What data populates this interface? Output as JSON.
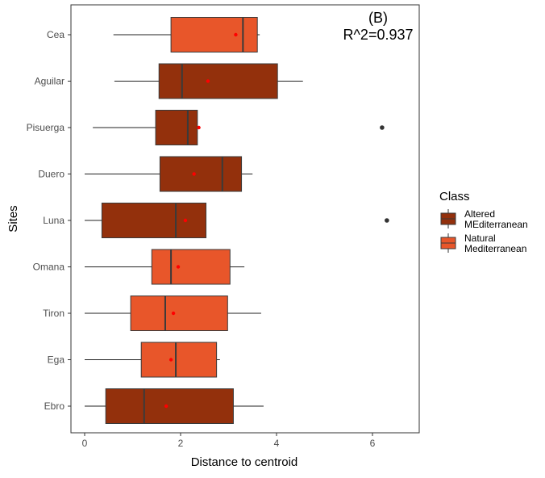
{
  "chart_data": {
    "type": "boxplot",
    "orientation": "horizontal",
    "annotation": {
      "line1": "(B)",
      "line2": "R^2=0.937"
    },
    "xlabel": "Distance to centroid",
    "ylabel": "Sites",
    "xlim": [
      -0.3,
      7.0
    ],
    "xticks": [
      0,
      2,
      4,
      6
    ],
    "xtick_labels": [
      "0",
      "2",
      "4",
      "6"
    ],
    "categories": [
      "Cea",
      "Aguilar",
      "Pisuerga",
      "Duero",
      "Luna",
      "Omana",
      "Tiron",
      "Ega",
      "Ebro"
    ],
    "legend": {
      "title": "Class",
      "position": "right",
      "entries": [
        {
          "key": "altered",
          "line1": "Altered",
          "line2": "MEditerranean",
          "color": "#93300c"
        },
        {
          "key": "natural",
          "line1": "Natural",
          "line2": "Mediterranean",
          "color": "#e8562a"
        }
      ]
    },
    "mean_marker_color": "#ff0000",
    "boxes": [
      {
        "site": "Cea",
        "class": "natural",
        "whisker_low": 0.6,
        "q1": 1.8,
        "median": 3.3,
        "q3": 3.6,
        "whisker_high": 3.65,
        "mean": 3.15,
        "outliers": []
      },
      {
        "site": "Aguilar",
        "class": "altered",
        "whisker_low": 0.62,
        "q1": 1.55,
        "median": 2.03,
        "q3": 4.02,
        "whisker_high": 4.55,
        "mean": 2.57,
        "outliers": []
      },
      {
        "site": "Pisuerga",
        "class": "altered",
        "whisker_low": 0.17,
        "q1": 1.48,
        "median": 2.15,
        "q3": 2.35,
        "whisker_high": 2.35,
        "mean": 2.38,
        "outliers": [
          6.2
        ]
      },
      {
        "site": "Duero",
        "class": "altered",
        "whisker_low": 0.0,
        "q1": 1.57,
        "median": 2.87,
        "q3": 3.27,
        "whisker_high": 3.5,
        "mean": 2.28,
        "outliers": []
      },
      {
        "site": "Luna",
        "class": "altered",
        "whisker_low": 0.0,
        "q1": 0.36,
        "median": 1.9,
        "q3": 2.53,
        "whisker_high": 2.53,
        "mean": 2.1,
        "outliers": [
          6.3
        ]
      },
      {
        "site": "Omana",
        "class": "natural",
        "whisker_low": 0.0,
        "q1": 1.4,
        "median": 1.8,
        "q3": 3.03,
        "whisker_high": 3.33,
        "mean": 1.95,
        "outliers": []
      },
      {
        "site": "Tiron",
        "class": "natural",
        "whisker_low": 0.0,
        "q1": 0.96,
        "median": 1.68,
        "q3": 2.98,
        "whisker_high": 3.68,
        "mean": 1.85,
        "outliers": []
      },
      {
        "site": "Ega",
        "class": "natural",
        "whisker_low": 0.0,
        "q1": 1.18,
        "median": 1.9,
        "q3": 2.75,
        "whisker_high": 2.82,
        "mean": 1.8,
        "outliers": []
      },
      {
        "site": "Ebro",
        "class": "altered",
        "whisker_low": 0.0,
        "q1": 0.44,
        "median": 1.24,
        "q3": 3.1,
        "whisker_high": 3.73,
        "mean": 1.7,
        "outliers": []
      }
    ]
  }
}
